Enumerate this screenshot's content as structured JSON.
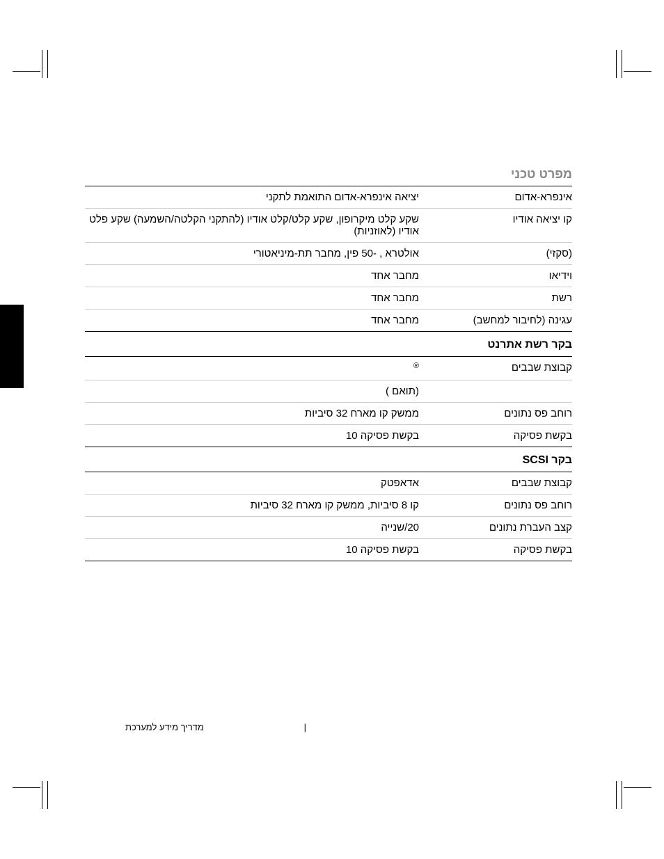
{
  "title": "מפרט טכני",
  "footer_left": "מדריך מידע למערכת",
  "footer_sep": "|",
  "rows": [
    {
      "label": "אינפרא-אדום",
      "value": "יציאה אינפרא-אדום התואמת לתקני"
    },
    {
      "label": "קו יציאה אודיו",
      "value": "שקע קלט מיקרופון, שקע קלט/קלט אודיו (להתקני הקלטה/השמעה) שקע פלט אודיו (לאוזניות)"
    },
    {
      "label": "(סקזי)",
      "value": "אולטרא      , -50 פין, מחבר      תת-מיניאטורי"
    },
    {
      "label": "וידיאו",
      "value": "מחבר אחד"
    },
    {
      "label": "רשת",
      "value": "מחבר      אחד"
    },
    {
      "label": "עגינה (לחיבור למחשב)",
      "value": "מחבר אחד"
    }
  ],
  "sub1_title": "בקר רשת אתרנט",
  "sub1_rows": [
    {
      "label": "קבוצת שבבים",
      "value": "®"
    },
    {
      "label": "",
      "value": "(תואם        )"
    },
    {
      "label": "רוחב פס נתונים",
      "value": "ממשק קו מארח      32 סיביות"
    },
    {
      "label": "בקשת פסיקה",
      "value": "בקשת פסיקה 10"
    }
  ],
  "sub2_title": "בקר SCSI",
  "sub2_rows": [
    {
      "label": "קבוצת שבבים",
      "value": "אדאפטק"
    },
    {
      "label": "רוחב פס נתונים",
      "value": "קו      8 סיביות, ממשק קו מארח      32 סיביות"
    },
    {
      "label": "קצב העברת נתונים",
      "value": "20/שנייה"
    },
    {
      "label": "בקשת פסיקה",
      "value": "בקשת פסיקה 10"
    }
  ]
}
